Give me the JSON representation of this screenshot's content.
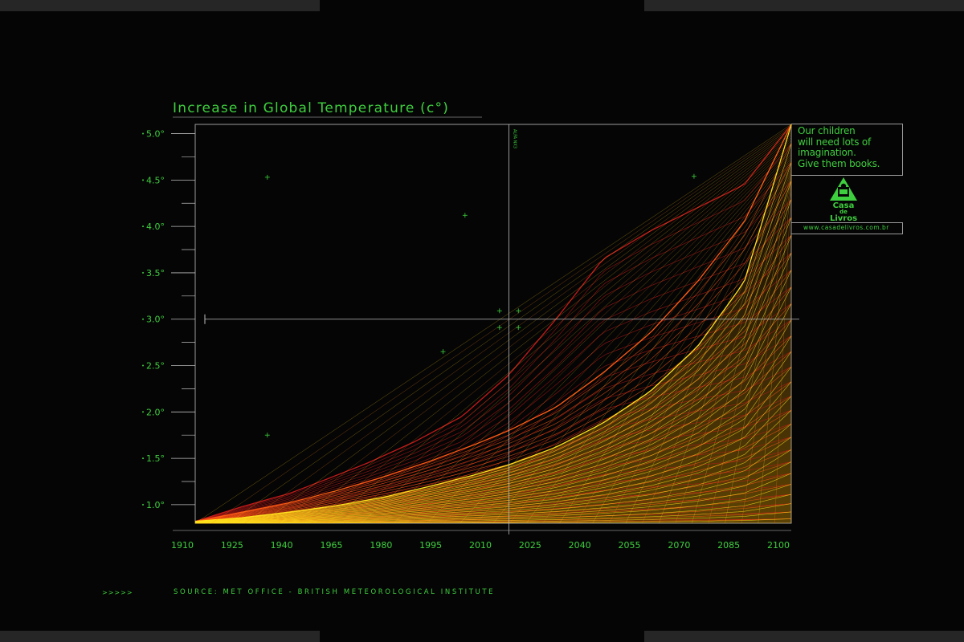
{
  "chart_data": {
    "type": "line",
    "title": "Increase in Global Temperature (c°)",
    "xlabel": "",
    "ylabel": "",
    "xlim": [
      1910,
      2100
    ],
    "ylim": [
      0.8,
      5.1
    ],
    "x_ticks": [
      "1910",
      "1925",
      "1940",
      "1965",
      "1980",
      "1995",
      "2010",
      "2025",
      "2040",
      "2055",
      "2070",
      "2085",
      "2100"
    ],
    "y_ticks": [
      {
        "value": 5.0,
        "label": "5.0°"
      },
      {
        "value": 4.5,
        "label": "4.5°"
      },
      {
        "value": 4.0,
        "label": "4.0°"
      },
      {
        "value": 3.5,
        "label": "3.5°"
      },
      {
        "value": 3.0,
        "label": "3.0°"
      },
      {
        "value": 2.5,
        "label": "2.5°"
      },
      {
        "value": 2.0,
        "label": "2.0°"
      },
      {
        "value": 1.5,
        "label": "1.5°"
      },
      {
        "value": 1.0,
        "label": "1.0°"
      }
    ],
    "reference_lines": {
      "x": 2010,
      "y": 3.0
    },
    "reference_label": "ALFA NX3",
    "series": [
      {
        "color": "#c41a1a",
        "x": [
          1910,
          1925,
          1940,
          1950,
          1965,
          1980,
          1995,
          2005,
          2010,
          2025,
          2040,
          2055,
          2070,
          2085,
          2100
        ],
        "values": [
          0.82,
          0.98,
          1.12,
          1.25,
          1.45,
          1.68,
          1.95,
          2.25,
          2.4,
          3.0,
          3.65,
          3.95,
          4.2,
          4.45,
          5.1
        ]
      },
      {
        "color": "#ff5a14",
        "x": [
          1910,
          1925,
          1940,
          1955,
          1970,
          1985,
          2000,
          2010,
          2025,
          2040,
          2055,
          2070,
          2085,
          2100
        ],
        "values": [
          0.82,
          0.92,
          1.02,
          1.15,
          1.3,
          1.47,
          1.66,
          1.8,
          2.05,
          2.42,
          2.85,
          3.4,
          4.05,
          5.1
        ]
      },
      {
        "color": "#ffe21c",
        "x": [
          1910,
          1925,
          1940,
          1955,
          1970,
          1985,
          2000,
          2010,
          2025,
          2040,
          2055,
          2070,
          2085,
          2100
        ],
        "values": [
          0.82,
          0.86,
          0.92,
          0.99,
          1.08,
          1.2,
          1.33,
          1.43,
          1.62,
          1.88,
          2.22,
          2.7,
          3.4,
          5.1
        ]
      }
    ],
    "markers": [
      {
        "x": 1933,
        "y": 4.53
      },
      {
        "x": 1996,
        "y": 4.12
      },
      {
        "x": 2069,
        "y": 4.54
      },
      {
        "x": 2007,
        "y": 3.09
      },
      {
        "x": 2013,
        "y": 3.09
      },
      {
        "x": 2007,
        "y": 2.91
      },
      {
        "x": 2013,
        "y": 2.91
      },
      {
        "x": 1989,
        "y": 2.65
      },
      {
        "x": 1933,
        "y": 1.75
      }
    ],
    "grid": false,
    "legend": "none"
  },
  "footer": {
    "arrows": ">>>>>",
    "source": "SOURCE: MET OFFICE - BRITISH METEOROLOGICAL INSTITUTE"
  },
  "ad": {
    "lines": [
      "Our children",
      "will need lots of",
      "imagination.",
      "Give them books."
    ],
    "logo_text": [
      "Casa",
      "de",
      "Livros"
    ],
    "url": "www.casadelivros.com.br"
  },
  "colors": {
    "accent": "#3ecf3e",
    "background": "#050505",
    "axis": "#bdbdbd",
    "series_red": "#c41a1a",
    "series_orange": "#ff5a14",
    "series_yellow": "#ffe21c"
  }
}
